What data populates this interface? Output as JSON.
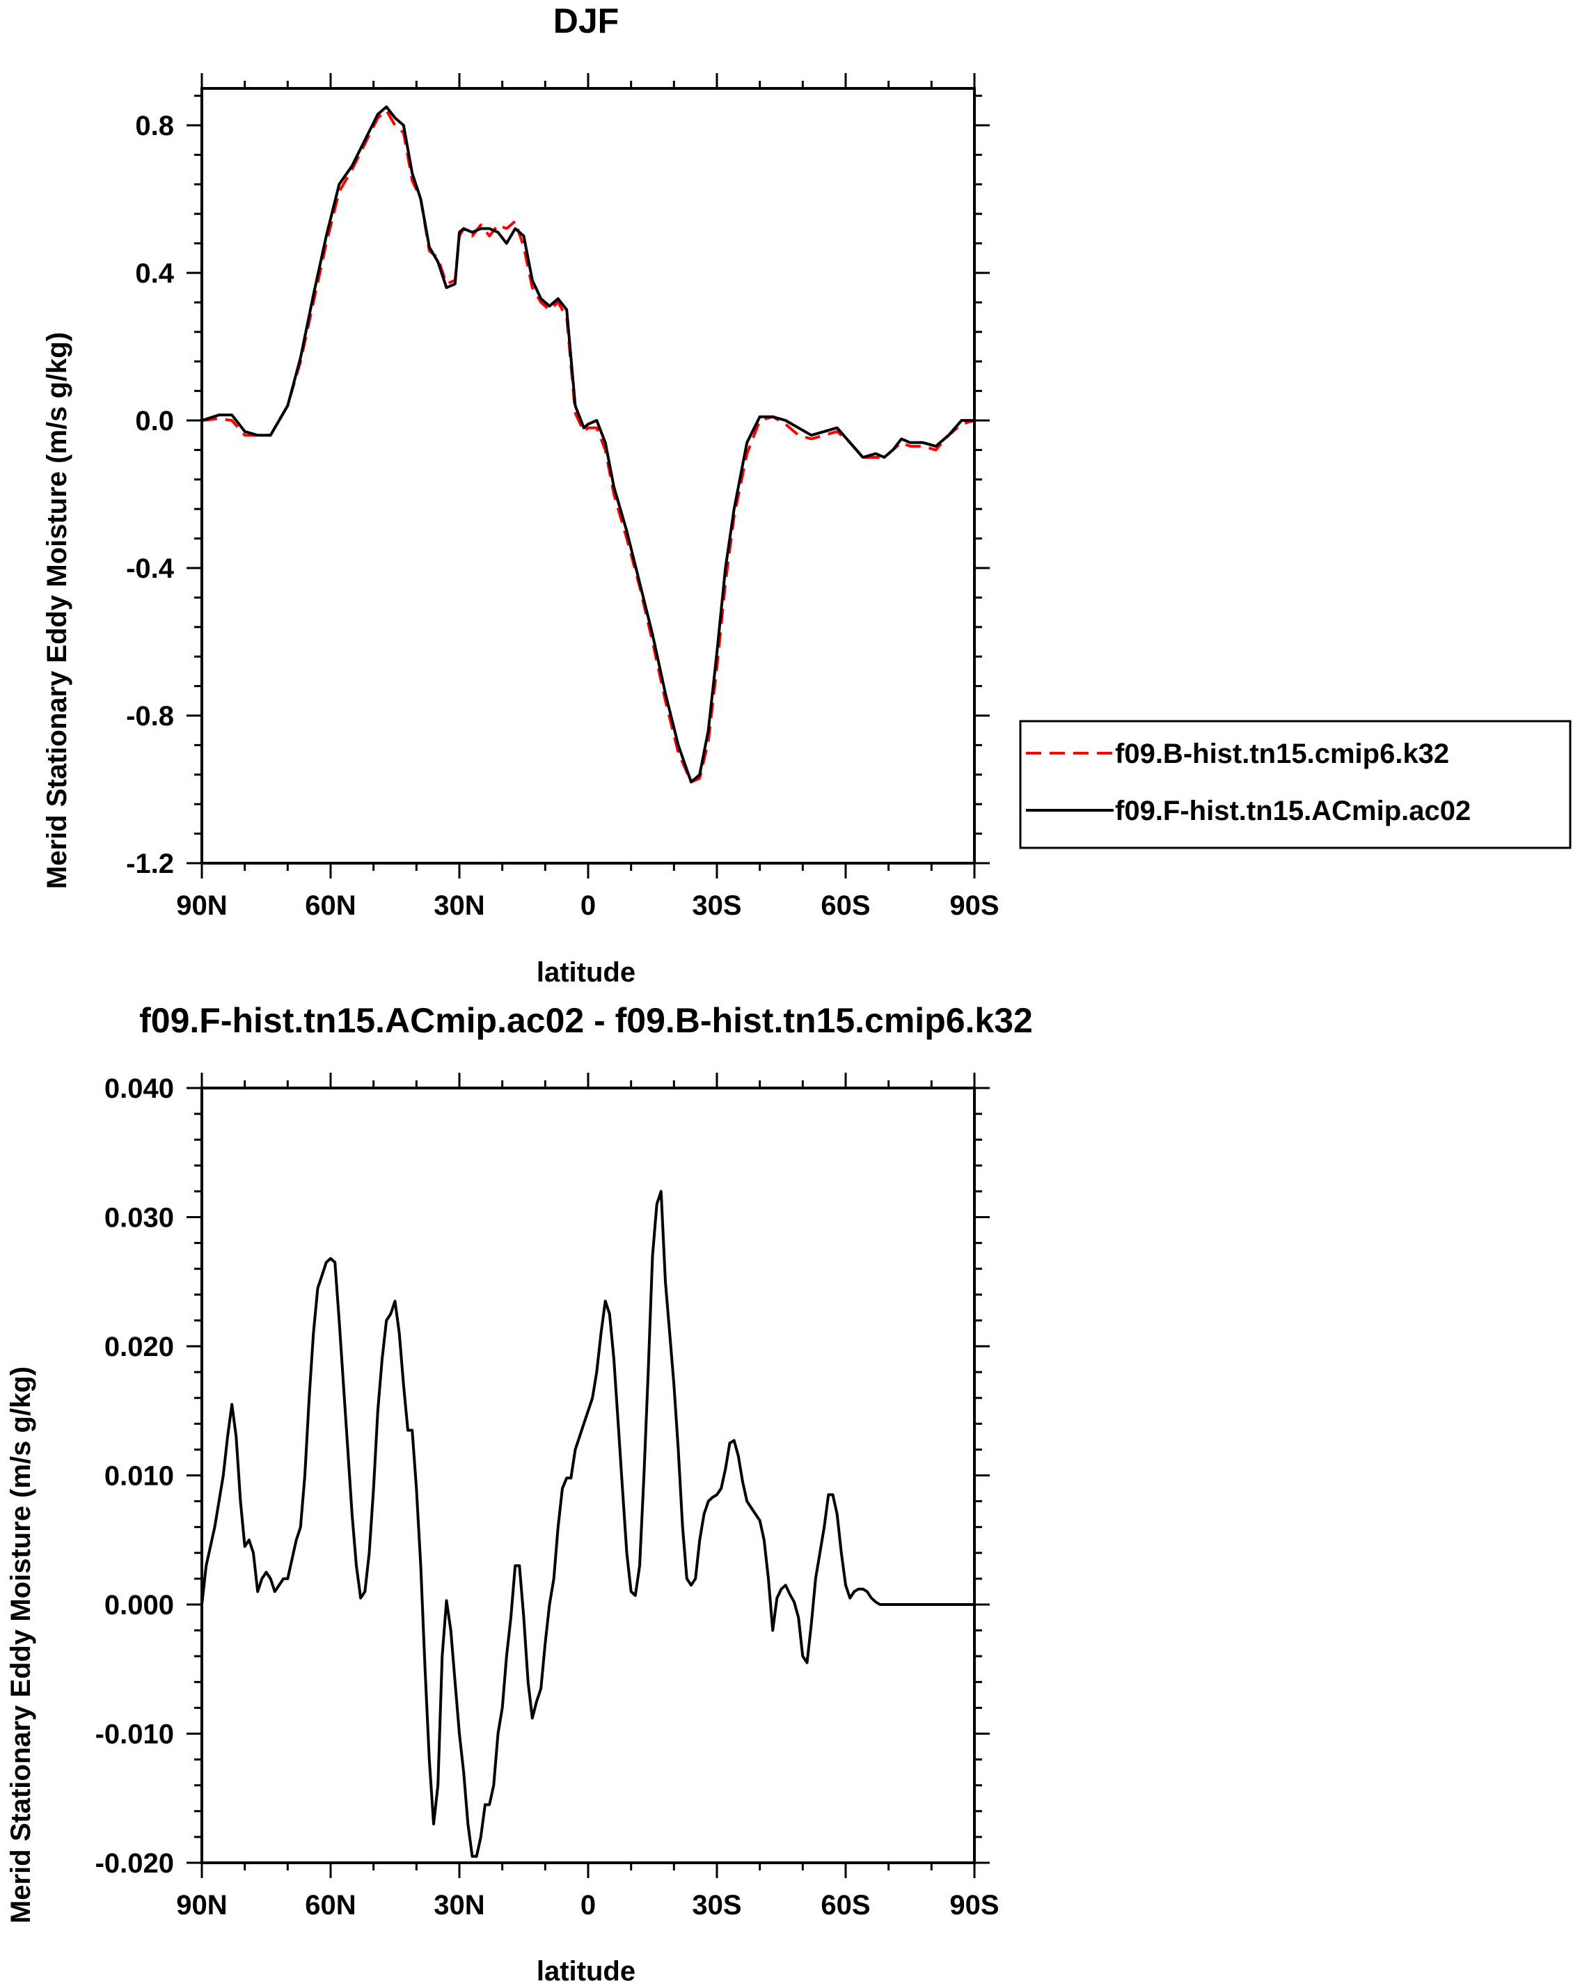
{
  "chart_data": [
    {
      "type": "line",
      "title": "DJF",
      "xlabel": "latitude",
      "ylabel": "Merid Stationary Eddy Moisture (m/s g/kg)",
      "xlim": [
        90,
        -90
      ],
      "ylim": [
        -1.2,
        0.9
      ],
      "x_ticks": [
        90,
        60,
        30,
        0,
        -30,
        -60,
        -90
      ],
      "x_tick_labels": [
        "90N",
        "60N",
        "30N",
        "0",
        "30S",
        "60S",
        "90S"
      ],
      "y_ticks": [
        0.8,
        0.4,
        0.0,
        -0.4,
        -0.8,
        -1.2
      ],
      "y_tick_labels": [
        "0.8",
        "0.4",
        "0.0",
        "-0.4",
        "-0.8",
        "-1.2"
      ],
      "legend_position": "right",
      "series": [
        {
          "name": "f09.B-hist.tn15.cmip6.k32",
          "color": "#ff0000",
          "dash": "dashed",
          "x": [
            90,
            86,
            83,
            80,
            77,
            74,
            72,
            70,
            67,
            64,
            61,
            58,
            55,
            52,
            49,
            47,
            45,
            43,
            41,
            39,
            37,
            35,
            33,
            31,
            30,
            29,
            27,
            25,
            23,
            21,
            19,
            17,
            15,
            13,
            11,
            9,
            7,
            5,
            3,
            1,
            0,
            -2,
            -4,
            -6,
            -9,
            -12,
            -15,
            -18,
            -21,
            -24,
            -26,
            -28,
            -30,
            -32,
            -34,
            -37,
            -40,
            -43,
            -46,
            -49,
            -52,
            -55,
            -58,
            -61,
            -64,
            -67,
            -69,
            -71,
            -73,
            -75,
            -78,
            -81,
            -84,
            -87,
            -90
          ],
          "y": [
            0.0,
            0.005,
            0.0,
            -0.04,
            -0.04,
            -0.04,
            0.0,
            0.04,
            0.16,
            0.32,
            0.48,
            0.62,
            0.68,
            0.75,
            0.82,
            0.84,
            0.8,
            0.78,
            0.65,
            0.6,
            0.46,
            0.44,
            0.37,
            0.38,
            0.5,
            0.52,
            0.5,
            0.53,
            0.5,
            0.53,
            0.52,
            0.54,
            0.47,
            0.36,
            0.32,
            0.3,
            0.32,
            0.28,
            0.02,
            -0.03,
            -0.02,
            -0.02,
            -0.08,
            -0.2,
            -0.32,
            -0.45,
            -0.6,
            -0.76,
            -0.9,
            -0.98,
            -0.97,
            -0.87,
            -0.67,
            -0.44,
            -0.26,
            -0.09,
            0.0,
            0.01,
            -0.01,
            -0.04,
            -0.05,
            -0.04,
            -0.03,
            -0.06,
            -0.1,
            -0.1,
            -0.1,
            -0.08,
            -0.06,
            -0.07,
            -0.07,
            -0.08,
            -0.04,
            -0.01,
            0.0
          ]
        },
        {
          "name": "f09.F-hist.tn15.ACmip.ac02",
          "color": "#000000",
          "dash": "solid",
          "x": [
            90,
            86,
            83,
            80,
            77,
            74,
            72,
            70,
            67,
            64,
            61,
            58,
            55,
            52,
            49,
            47,
            45,
            43,
            41,
            39,
            37,
            35,
            33,
            31,
            30,
            29,
            27,
            25,
            23,
            21,
            19,
            17,
            15,
            13,
            11,
            9,
            7,
            5,
            3,
            1,
            0,
            -2,
            -4,
            -6,
            -9,
            -12,
            -15,
            -18,
            -21,
            -24,
            -26,
            -28,
            -30,
            -32,
            -34,
            -37,
            -40,
            -43,
            -46,
            -49,
            -52,
            -55,
            -58,
            -61,
            -64,
            -67,
            -69,
            -71,
            -73,
            -75,
            -78,
            -81,
            -84,
            -87,
            -90
          ],
          "y": [
            0.0,
            0.015,
            0.015,
            -0.03,
            -0.04,
            -0.04,
            0.0,
            0.04,
            0.17,
            0.34,
            0.5,
            0.64,
            0.69,
            0.76,
            0.83,
            0.85,
            0.82,
            0.8,
            0.67,
            0.6,
            0.47,
            0.43,
            0.36,
            0.37,
            0.51,
            0.52,
            0.51,
            0.52,
            0.52,
            0.51,
            0.48,
            0.52,
            0.5,
            0.38,
            0.33,
            0.31,
            0.33,
            0.3,
            0.04,
            -0.02,
            -0.01,
            0.0,
            -0.06,
            -0.18,
            -0.3,
            -0.44,
            -0.58,
            -0.74,
            -0.88,
            -0.98,
            -0.96,
            -0.84,
            -0.63,
            -0.4,
            -0.24,
            -0.06,
            0.01,
            0.01,
            0.0,
            -0.02,
            -0.04,
            -0.03,
            -0.02,
            -0.06,
            -0.1,
            -0.09,
            -0.1,
            -0.08,
            -0.05,
            -0.06,
            -0.06,
            -0.07,
            -0.04,
            0.0,
            0.0
          ]
        }
      ]
    },
    {
      "type": "line",
      "title": "f09.F-hist.tn15.ACmip.ac02 - f09.B-hist.tn15.cmip6.k32",
      "xlabel": "latitude",
      "ylabel": "Merid Stationary Eddy Moisture (m/s g/kg)",
      "xlim": [
        90,
        -90
      ],
      "ylim": [
        -0.02,
        0.04
      ],
      "x_ticks": [
        90,
        60,
        30,
        0,
        -30,
        -60,
        -90
      ],
      "x_tick_labels": [
        "90N",
        "60N",
        "30N",
        "0",
        "30S",
        "60S",
        "90S"
      ],
      "y_ticks": [
        0.04,
        0.03,
        0.02,
        0.01,
        0.0,
        -0.01,
        -0.02
      ],
      "y_tick_labels": [
        "0.040",
        "0.030",
        "0.020",
        "0.010",
        "0.000",
        "-0.010",
        "-0.020"
      ],
      "series": [
        {
          "color": "#000000",
          "dash": "solid",
          "x": [
            90,
            89,
            87,
            85,
            84,
            83,
            82,
            81,
            80,
            79,
            78,
            77,
            76,
            75,
            74,
            73,
            72,
            71,
            70,
            69,
            68,
            67,
            66,
            65,
            64,
            63,
            62,
            61,
            60,
            59,
            58,
            57,
            56,
            55,
            54,
            53,
            52,
            51,
            50,
            49,
            48,
            47,
            46,
            45,
            44,
            43,
            42,
            41,
            40,
            39,
            38,
            37,
            36,
            35,
            34,
            33,
            32,
            31,
            30,
            29,
            28,
            27,
            26,
            25,
            24,
            23,
            22,
            21,
            20,
            19,
            18,
            17,
            16,
            15,
            14,
            13,
            12,
            11,
            10,
            9,
            8,
            7,
            6,
            5,
            4,
            3,
            2,
            1,
            0,
            -1,
            -2,
            -3,
            -4,
            -5,
            -6,
            -7,
            -8,
            -9,
            -10,
            -11,
            -12,
            -13,
            -14,
            -15,
            -16,
            -17,
            -18,
            -19,
            -20,
            -21,
            -22,
            -23,
            -24,
            -25,
            -26,
            -27,
            -28,
            -29,
            -30,
            -31,
            -32,
            -33,
            -34,
            -35,
            -36,
            -37,
            -38,
            -39,
            -40,
            -41,
            -42,
            -43,
            -44,
            -45,
            -46,
            -47,
            -48,
            -49,
            -50,
            -51,
            -52,
            -53,
            -54,
            -55,
            -56,
            -57,
            -58,
            -59,
            -60,
            -61,
            -62,
            -63,
            -64,
            -65,
            -66,
            -67,
            -68,
            -69,
            -70,
            -71,
            -72,
            -73,
            -74,
            -75,
            -76,
            -77,
            -78,
            -79,
            -80,
            -81,
            -82,
            -83,
            -84,
            -85,
            -86,
            -87,
            -88,
            -89,
            -90
          ],
          "y": [
            0.0,
            0.003,
            0.006,
            0.01,
            0.013,
            0.0155,
            0.013,
            0.008,
            0.0045,
            0.005,
            0.004,
            0.001,
            0.002,
            0.0025,
            0.002,
            0.001,
            0.0015,
            0.002,
            0.002,
            0.0035,
            0.005,
            0.006,
            0.01,
            0.016,
            0.021,
            0.0245,
            0.0255,
            0.0265,
            0.0268,
            0.0265,
            0.022,
            0.017,
            0.012,
            0.007,
            0.003,
            0.0005,
            0.001,
            0.004,
            0.009,
            0.015,
            0.019,
            0.022,
            0.0225,
            0.0235,
            0.021,
            0.017,
            0.0135,
            0.0135,
            0.009,
            0.003,
            -0.005,
            -0.012,
            -0.017,
            -0.014,
            -0.004,
            0.0003,
            -0.002,
            -0.006,
            -0.01,
            -0.013,
            -0.017,
            -0.0195,
            -0.0195,
            -0.018,
            -0.0155,
            -0.0155,
            -0.014,
            -0.01,
            -0.008,
            -0.004,
            -0.001,
            0.003,
            0.003,
            -0.001,
            -0.006,
            -0.0088,
            -0.0075,
            -0.0065,
            -0.003,
            0.0,
            0.002,
            0.006,
            0.009,
            0.0098,
            0.0098,
            0.012,
            0.013,
            0.014,
            0.015,
            0.016,
            0.018,
            0.021,
            0.0235,
            0.0225,
            0.019,
            0.014,
            0.009,
            0.004,
            0.001,
            0.0007,
            0.003,
            0.01,
            0.018,
            0.027,
            0.031,
            0.032,
            0.025,
            0.021,
            0.017,
            0.012,
            0.006,
            0.002,
            0.0015,
            0.002,
            0.005,
            0.007,
            0.008,
            0.0083,
            0.0085,
            0.009,
            0.0105,
            0.0125,
            0.0127,
            0.0115,
            0.0095,
            0.008,
            0.0075,
            0.007,
            0.0065,
            0.005,
            0.002,
            -0.002,
            0.0005,
            0.0012,
            0.0015,
            0.0008,
            0.0002,
            -0.001,
            -0.004,
            -0.0045,
            -0.0015,
            0.002,
            0.004,
            0.006,
            0.0085,
            0.0085,
            0.007,
            0.004,
            0.0015,
            0.0005,
            0.001,
            0.0012,
            0.0012,
            0.001,
            0.0005,
            0.0002,
            0.0,
            0.0,
            0.0,
            0.0,
            0.0,
            0.0,
            0.0,
            0.0,
            0.0,
            0.0,
            0.0,
            0.0,
            0.0,
            0.0,
            0.0,
            0.0,
            0.0,
            0.0,
            0.0,
            0.0,
            0.0,
            0.0,
            0.0
          ]
        }
      ]
    }
  ]
}
